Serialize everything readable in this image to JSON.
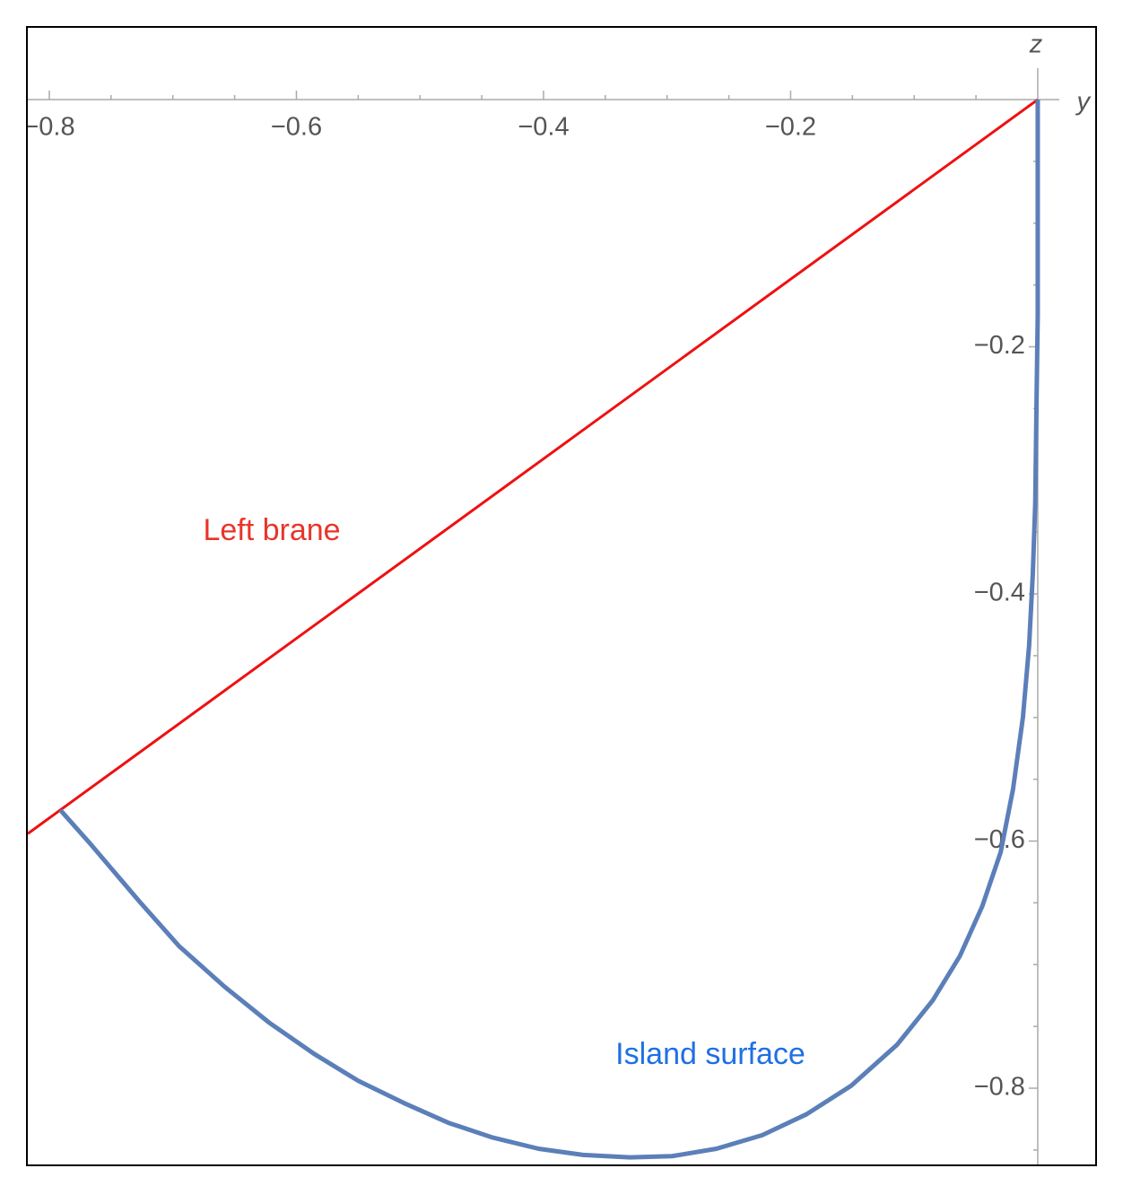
{
  "chart_data": {
    "type": "line",
    "x_label": "y",
    "y_label": "z",
    "xlim": [
      -0.8174,
      0.0465
    ],
    "ylim": [
      -0.8617,
      0.0581
    ],
    "xticks": [
      {
        "value": -0.8,
        "label": "−0.8"
      },
      {
        "value": -0.6,
        "label": "−0.6"
      },
      {
        "value": -0.4,
        "label": "−0.4"
      },
      {
        "value": -0.2,
        "label": "−0.2"
      }
    ],
    "yticks": [
      {
        "value": -0.2,
        "label": "−0.2"
      },
      {
        "value": -0.4,
        "label": "−0.4"
      },
      {
        "value": -0.6,
        "label": "−0.6"
      },
      {
        "value": -0.8,
        "label": "−0.8"
      }
    ],
    "xminorticks": [
      -0.75,
      -0.7,
      -0.65,
      -0.55,
      -0.5,
      -0.45,
      -0.35,
      -0.3,
      -0.25,
      -0.15,
      -0.1,
      -0.05
    ],
    "yminorticks": [
      -0.05,
      -0.1,
      -0.15,
      -0.25,
      -0.3,
      -0.35,
      -0.45,
      -0.5,
      -0.55,
      -0.65,
      -0.7,
      -0.75,
      -0.85
    ],
    "series": [
      {
        "name": "Left brane",
        "color": "#ee1111",
        "label_color": "#e8352a",
        "x": [
          -0.8174,
          0
        ],
        "values": [
          -0.594,
          0
        ]
      },
      {
        "name": "Island surface",
        "color": "#5b7fb9",
        "label_color": "#1f6fe6",
        "x": [
          -0.791,
          -0.767,
          -0.727,
          -0.695,
          -0.658,
          -0.622,
          -0.586,
          -0.55,
          -0.513,
          -0.477,
          -0.441,
          -0.404,
          -0.368,
          -0.33,
          -0.296,
          -0.26,
          -0.223,
          -0.187,
          -0.151,
          -0.114,
          -0.085,
          -0.063,
          -0.045,
          -0.03,
          -0.02,
          -0.012,
          -0.007,
          -0.004,
          -0.002,
          -0.001,
          0,
          0
        ],
        "values": [
          -0.575,
          -0.602,
          -0.649,
          -0.685,
          -0.718,
          -0.747,
          -0.772,
          -0.794,
          -0.812,
          -0.828,
          -0.84,
          -0.849,
          -0.854,
          -0.856,
          -0.855,
          -0.849,
          -0.838,
          -0.821,
          -0.798,
          -0.765,
          -0.729,
          -0.693,
          -0.653,
          -0.609,
          -0.558,
          -0.5,
          -0.442,
          -0.384,
          -0.326,
          -0.246,
          -0.174,
          0
        ]
      }
    ]
  }
}
